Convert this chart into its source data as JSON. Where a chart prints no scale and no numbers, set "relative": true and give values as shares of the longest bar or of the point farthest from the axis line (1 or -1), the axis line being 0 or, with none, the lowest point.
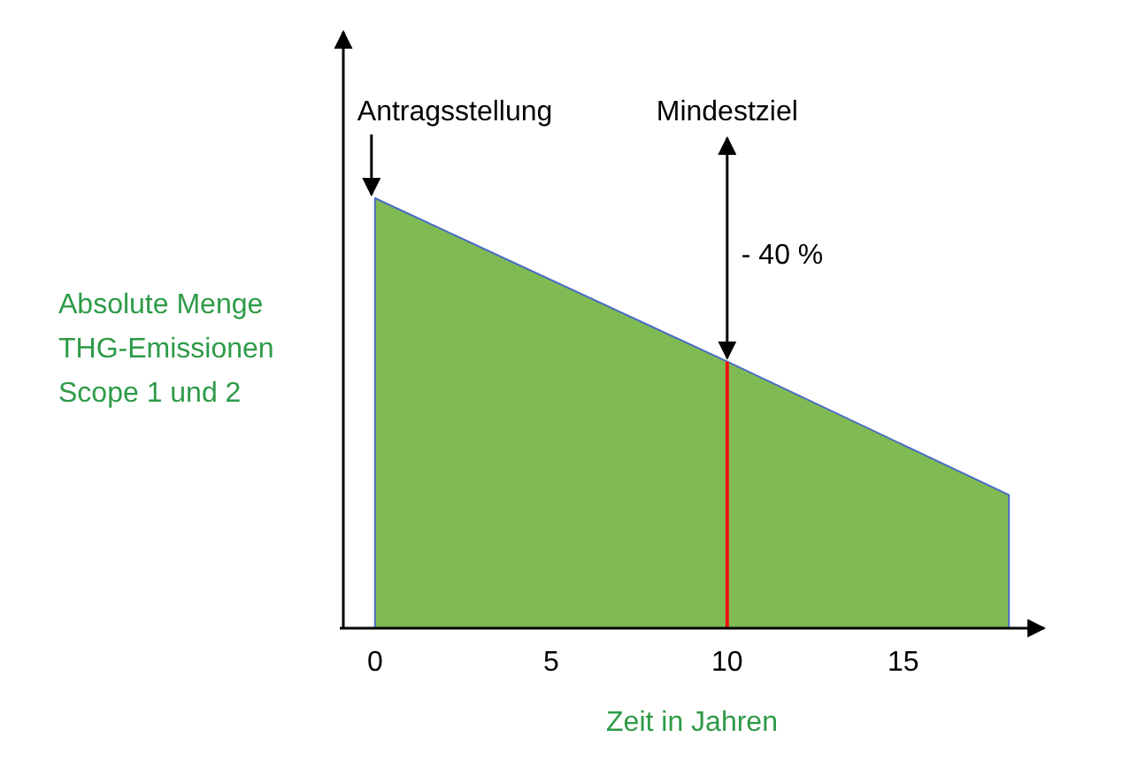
{
  "chart_data": {
    "type": "area",
    "relative": true,
    "xlabel": "Zeit in Jahren",
    "ylabel": "Absolute Menge\nTHG-Emissionen\nScope 1 und 2",
    "x": [
      0,
      10,
      18
    ],
    "series": [
      {
        "color": "#7fbb52",
        "values": [
          1,
          0.62,
          0.31
        ]
      }
    ],
    "xlim": [
      -1,
      19
    ],
    "xticks": [
      0,
      5,
      10,
      15
    ],
    "ref_lines": [
      {
        "axis": "x",
        "value": 10,
        "color": "#ee1111"
      }
    ],
    "annotations": [
      {
        "text": "Antragsstellung",
        "x": 0,
        "y": 1
      },
      "Mindestziel",
      "- 40 %"
    ],
    "grid": false
  }
}
